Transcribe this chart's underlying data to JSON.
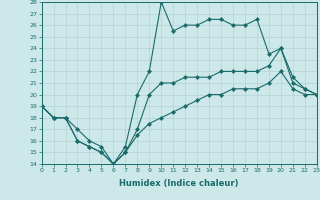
{
  "xlabel": "Humidex (Indice chaleur)",
  "bg_color": "#cce8e8",
  "line_color": "#1a6b6b",
  "grid_color": "#b0cccc",
  "xlim": [
    0,
    23
  ],
  "ylim": [
    14,
    28
  ],
  "yticks": [
    14,
    15,
    16,
    17,
    18,
    19,
    20,
    21,
    22,
    23,
    24,
    25,
    26,
    27,
    28
  ],
  "xticks": [
    0,
    1,
    2,
    3,
    4,
    5,
    6,
    7,
    8,
    9,
    10,
    11,
    12,
    13,
    14,
    15,
    16,
    17,
    18,
    19,
    20,
    21,
    22,
    23
  ],
  "line1_x": [
    0,
    1,
    2,
    3,
    4,
    5,
    6,
    7,
    8,
    9,
    10,
    11,
    12,
    13,
    14,
    15,
    16,
    17,
    18,
    19,
    20,
    21,
    22,
    23
  ],
  "line1_y": [
    19,
    18,
    18,
    16,
    15.5,
    15,
    14,
    15.5,
    20,
    22,
    28,
    25.5,
    26,
    26,
    26.5,
    26.5,
    26,
    26,
    26.5,
    23.5,
    24,
    21,
    20.5,
    20
  ],
  "line2_x": [
    0,
    1,
    2,
    3,
    4,
    5,
    6,
    7,
    8,
    9,
    10,
    11,
    12,
    13,
    14,
    15,
    16,
    17,
    18,
    19,
    20,
    21,
    22,
    23
  ],
  "line2_y": [
    19,
    18,
    18,
    16,
    15.5,
    15,
    14,
    15,
    17,
    20,
    21,
    21,
    21.5,
    21.5,
    21.5,
    22,
    22,
    22,
    22,
    22.5,
    24,
    21.5,
    20.5,
    20
  ],
  "line3_x": [
    0,
    1,
    2,
    3,
    4,
    5,
    6,
    7,
    8,
    9,
    10,
    11,
    12,
    13,
    14,
    15,
    16,
    17,
    18,
    19,
    20,
    21,
    22,
    23
  ],
  "line3_y": [
    19,
    18,
    18,
    17,
    16,
    15.5,
    14,
    15,
    16.5,
    17.5,
    18,
    18.5,
    19,
    19.5,
    20,
    20,
    20.5,
    20.5,
    20.5,
    21,
    22,
    20.5,
    20,
    20
  ]
}
